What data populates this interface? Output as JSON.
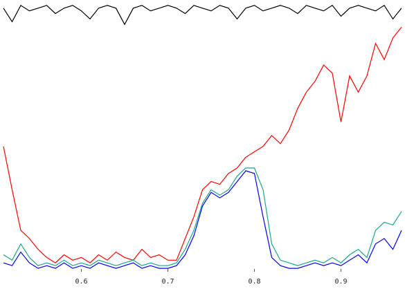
{
  "chart_data": {
    "type": "line",
    "x": [
      0.51,
      0.52,
      0.53,
      0.54,
      0.55,
      0.56,
      0.57,
      0.58,
      0.59,
      0.6,
      0.61,
      0.62,
      0.63,
      0.64,
      0.65,
      0.66,
      0.67,
      0.68,
      0.69,
      0.7,
      0.71,
      0.72,
      0.73,
      0.74,
      0.75,
      0.76,
      0.77,
      0.78,
      0.79,
      0.8,
      0.81,
      0.82,
      0.83,
      0.84,
      0.85,
      0.86,
      0.87,
      0.88,
      0.89,
      0.9,
      0.91,
      0.92,
      0.93,
      0.94,
      0.95,
      0.96,
      0.97
    ],
    "series": [
      {
        "color": "#000000",
        "values": [
          0.97,
          0.92,
          0.98,
          0.96,
          0.97,
          0.98,
          0.95,
          0.97,
          0.98,
          0.96,
          0.93,
          0.97,
          0.98,
          0.97,
          0.91,
          0.97,
          0.98,
          0.96,
          0.97,
          0.98,
          0.97,
          0.95,
          0.98,
          0.97,
          0.96,
          0.98,
          0.97,
          0.93,
          0.97,
          0.98,
          0.96,
          0.97,
          0.98,
          0.97,
          0.95,
          0.98,
          0.97,
          0.96,
          0.98,
          0.94,
          0.97,
          0.98,
          0.97,
          0.96,
          0.98,
          0.93,
          0.97
        ]
      },
      {
        "color": "#ff0000",
        "values": [
          0.46,
          0.3,
          0.15,
          0.12,
          0.08,
          0.05,
          0.03,
          0.06,
          0.04,
          0.05,
          0.03,
          0.06,
          0.04,
          0.07,
          0.05,
          0.04,
          0.08,
          0.05,
          0.06,
          0.04,
          0.04,
          0.12,
          0.2,
          0.3,
          0.33,
          0.32,
          0.36,
          0.38,
          0.42,
          0.44,
          0.46,
          0.5,
          0.47,
          0.52,
          0.6,
          0.66,
          0.7,
          0.76,
          0.73,
          0.55,
          0.72,
          0.66,
          0.72,
          0.84,
          0.78,
          0.86,
          0.9
        ]
      },
      {
        "color": "#19a58c",
        "values": [
          0.06,
          0.04,
          0.1,
          0.05,
          0.02,
          0.03,
          0.02,
          0.04,
          0.02,
          0.03,
          0.02,
          0.04,
          0.03,
          0.02,
          0.03,
          0.04,
          0.02,
          0.03,
          0.02,
          0.02,
          0.03,
          0.08,
          0.15,
          0.25,
          0.3,
          0.28,
          0.3,
          0.35,
          0.38,
          0.38,
          0.3,
          0.1,
          0.04,
          0.03,
          0.02,
          0.03,
          0.04,
          0.03,
          0.05,
          0.03,
          0.06,
          0.08,
          0.05,
          0.15,
          0.18,
          0.17,
          0.22
        ]
      },
      {
        "color": "#0000ff",
        "values": [
          0.03,
          0.02,
          0.07,
          0.03,
          0.01,
          0.02,
          0.01,
          0.03,
          0.01,
          0.02,
          0.01,
          0.03,
          0.02,
          0.01,
          0.02,
          0.03,
          0.01,
          0.02,
          0.01,
          0.01,
          0.02,
          0.06,
          0.13,
          0.24,
          0.29,
          0.27,
          0.29,
          0.33,
          0.37,
          0.36,
          0.2,
          0.05,
          0.02,
          0.01,
          0.01,
          0.02,
          0.03,
          0.02,
          0.03,
          0.02,
          0.04,
          0.06,
          0.03,
          0.1,
          0.12,
          0.08,
          0.15
        ]
      }
    ],
    "xlim": [
      0.506,
      0.974
    ],
    "ylim": [
      0,
      1
    ],
    "xticks": [
      0.6,
      0.7,
      0.8,
      0.9
    ]
  }
}
